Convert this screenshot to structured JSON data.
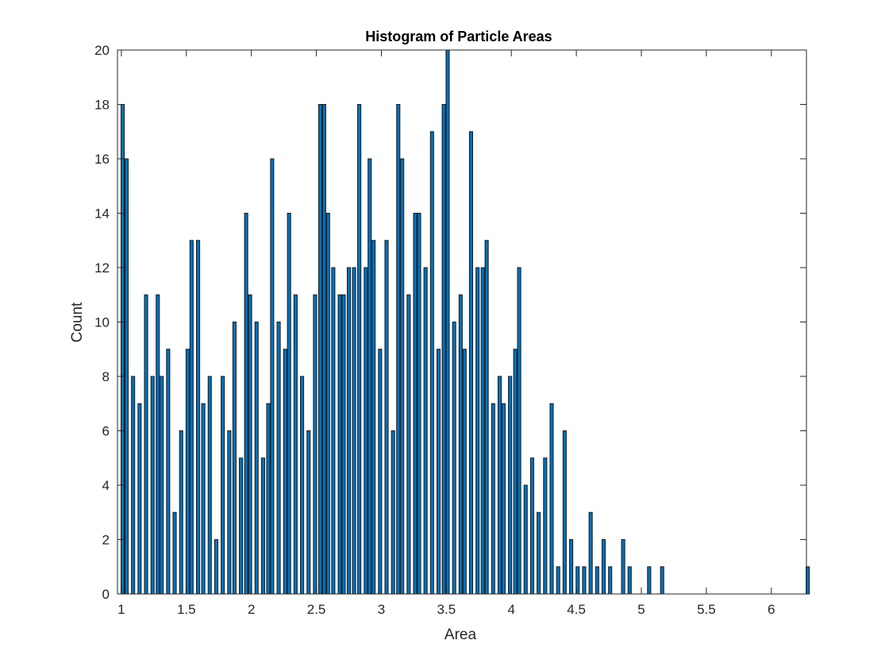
{
  "chart_data": {
    "type": "bar",
    "title": "Histogram of Particle Areas",
    "xlabel": "Area",
    "ylabel": "Count",
    "xlim": [
      0.97,
      6.27
    ],
    "ylim": [
      0,
      20
    ],
    "xticks": [
      1,
      1.5,
      2,
      2.5,
      3,
      3.5,
      4,
      4.5,
      5,
      5.5,
      6
    ],
    "xtick_labels": [
      "1",
      "1.5",
      "2",
      "2.5",
      "3",
      "3.5",
      "4",
      "4.5",
      "5",
      "5.5",
      "6"
    ],
    "yticks": [
      0,
      2,
      4,
      6,
      8,
      10,
      12,
      14,
      16,
      18,
      20
    ],
    "ytick_labels": [
      "0",
      "2",
      "4",
      "6",
      "8",
      "10",
      "12",
      "14",
      "16",
      "18",
      "20"
    ],
    "bin_width": 0.025,
    "grid": false,
    "bar_color": "#0072bd",
    "edge_color": "#1a1a1a",
    "bins": [
      {
        "x": 1.01,
        "count": 18
      },
      {
        "x": 1.04,
        "count": 16
      },
      {
        "x": 1.09,
        "count": 8
      },
      {
        "x": 1.14,
        "count": 7
      },
      {
        "x": 1.19,
        "count": 11
      },
      {
        "x": 1.24,
        "count": 8
      },
      {
        "x": 1.28,
        "count": 11
      },
      {
        "x": 1.31,
        "count": 8
      },
      {
        "x": 1.36,
        "count": 9
      },
      {
        "x": 1.41,
        "count": 3
      },
      {
        "x": 1.46,
        "count": 6
      },
      {
        "x": 1.51,
        "count": 9
      },
      {
        "x": 1.54,
        "count": 13
      },
      {
        "x": 1.59,
        "count": 13
      },
      {
        "x": 1.63,
        "count": 7
      },
      {
        "x": 1.68,
        "count": 8
      },
      {
        "x": 1.73,
        "count": 2
      },
      {
        "x": 1.78,
        "count": 8
      },
      {
        "x": 1.83,
        "count": 6
      },
      {
        "x": 1.87,
        "count": 10
      },
      {
        "x": 1.92,
        "count": 5
      },
      {
        "x": 1.96,
        "count": 14
      },
      {
        "x": 1.99,
        "count": 11
      },
      {
        "x": 2.04,
        "count": 10
      },
      {
        "x": 2.09,
        "count": 5
      },
      {
        "x": 2.13,
        "count": 7
      },
      {
        "x": 2.16,
        "count": 16
      },
      {
        "x": 2.21,
        "count": 10
      },
      {
        "x": 2.26,
        "count": 9
      },
      {
        "x": 2.29,
        "count": 14
      },
      {
        "x": 2.34,
        "count": 11
      },
      {
        "x": 2.39,
        "count": 8
      },
      {
        "x": 2.44,
        "count": 6
      },
      {
        "x": 2.49,
        "count": 11
      },
      {
        "x": 2.53,
        "count": 18
      },
      {
        "x": 2.56,
        "count": 18
      },
      {
        "x": 2.59,
        "count": 14
      },
      {
        "x": 2.63,
        "count": 12
      },
      {
        "x": 2.68,
        "count": 11
      },
      {
        "x": 2.71,
        "count": 11
      },
      {
        "x": 2.75,
        "count": 12
      },
      {
        "x": 2.79,
        "count": 12
      },
      {
        "x": 2.83,
        "count": 18
      },
      {
        "x": 2.88,
        "count": 12
      },
      {
        "x": 2.91,
        "count": 16
      },
      {
        "x": 2.94,
        "count": 13
      },
      {
        "x": 2.99,
        "count": 9
      },
      {
        "x": 3.04,
        "count": 13
      },
      {
        "x": 3.09,
        "count": 6
      },
      {
        "x": 3.13,
        "count": 18
      },
      {
        "x": 3.16,
        "count": 16
      },
      {
        "x": 3.21,
        "count": 11
      },
      {
        "x": 3.26,
        "count": 14
      },
      {
        "x": 3.29,
        "count": 14
      },
      {
        "x": 3.34,
        "count": 12
      },
      {
        "x": 3.39,
        "count": 17
      },
      {
        "x": 3.44,
        "count": 9
      },
      {
        "x": 3.48,
        "count": 18
      },
      {
        "x": 3.51,
        "count": 20
      },
      {
        "x": 3.56,
        "count": 10
      },
      {
        "x": 3.61,
        "count": 11
      },
      {
        "x": 3.64,
        "count": 9
      },
      {
        "x": 3.69,
        "count": 17
      },
      {
        "x": 3.74,
        "count": 12
      },
      {
        "x": 3.78,
        "count": 12
      },
      {
        "x": 3.81,
        "count": 13
      },
      {
        "x": 3.86,
        "count": 7
      },
      {
        "x": 3.91,
        "count": 8
      },
      {
        "x": 3.94,
        "count": 7
      },
      {
        "x": 3.99,
        "count": 8
      },
      {
        "x": 4.03,
        "count": 9
      },
      {
        "x": 4.06,
        "count": 12
      },
      {
        "x": 4.11,
        "count": 4
      },
      {
        "x": 4.16,
        "count": 5
      },
      {
        "x": 4.21,
        "count": 3
      },
      {
        "x": 4.26,
        "count": 5
      },
      {
        "x": 4.31,
        "count": 7
      },
      {
        "x": 4.36,
        "count": 1
      },
      {
        "x": 4.41,
        "count": 6
      },
      {
        "x": 4.46,
        "count": 2
      },
      {
        "x": 4.51,
        "count": 1
      },
      {
        "x": 4.56,
        "count": 1
      },
      {
        "x": 4.61,
        "count": 3
      },
      {
        "x": 4.66,
        "count": 1
      },
      {
        "x": 4.71,
        "count": 2
      },
      {
        "x": 4.76,
        "count": 1
      },
      {
        "x": 4.86,
        "count": 2
      },
      {
        "x": 4.91,
        "count": 1
      },
      {
        "x": 5.06,
        "count": 1
      },
      {
        "x": 5.16,
        "count": 1
      },
      {
        "x": 6.28,
        "count": 1
      }
    ]
  }
}
